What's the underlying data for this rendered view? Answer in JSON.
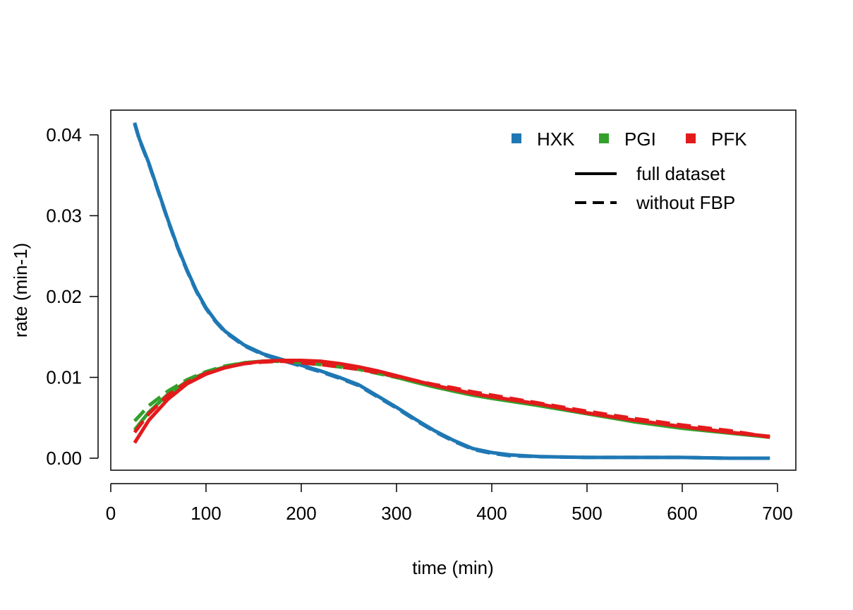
{
  "chart_data": {
    "type": "line",
    "title": "",
    "xlabel": "time (min)",
    "ylabel": "rate (min-1)",
    "xlim": [
      0,
      700
    ],
    "ylim": [
      0,
      0.042
    ],
    "xticks": [
      "0",
      "100",
      "200",
      "300",
      "400",
      "500",
      "600",
      "700"
    ],
    "yticks": [
      "0.00",
      "0.01",
      "0.02",
      "0.03",
      "0.04"
    ],
    "grid": false,
    "legend_placement": "top-right",
    "legend_enzymes": [
      {
        "name": "HXK",
        "color": "#1f78b4"
      },
      {
        "name": "PGI",
        "color": "#33a02c"
      },
      {
        "name": "PFK",
        "color": "#e31a1c"
      }
    ],
    "legend_styles": [
      {
        "name": "full dataset",
        "dash": "solid"
      },
      {
        "name": "without FBP",
        "dash": "dashed"
      }
    ],
    "series": [
      {
        "color": "#1f78b4",
        "dash": "solid",
        "x": [
          25,
          30,
          40,
          50,
          60,
          70,
          80,
          90,
          100,
          110,
          120,
          140,
          160,
          180,
          200,
          220,
          240,
          260,
          280,
          300,
          320,
          340,
          360,
          380,
          400,
          420,
          450,
          500,
          550,
          600,
          650,
          692
        ],
        "y": [
          0.0415,
          0.0395,
          0.0365,
          0.033,
          0.0295,
          0.0262,
          0.0233,
          0.0207,
          0.0186,
          0.017,
          0.0157,
          0.014,
          0.0129,
          0.0122,
          0.0115,
          0.0108,
          0.01,
          0.0091,
          0.0077,
          0.0063,
          0.0048,
          0.0034,
          0.0022,
          0.0012,
          0.0007,
          0.0004,
          0.0002,
          0.0001,
          0.0001,
          0.0001,
          0.0,
          0.0
        ]
      },
      {
        "color": "#1f78b4",
        "dash": "dashed",
        "x": [
          25,
          30,
          40,
          50,
          60,
          70,
          80,
          90,
          100,
          110,
          120,
          140,
          160,
          180,
          200,
          220,
          240,
          260,
          280,
          300,
          320,
          340,
          360,
          380,
          400,
          420,
          450,
          500,
          550,
          600,
          650,
          692
        ],
        "y": [
          0.0414,
          0.0394,
          0.0364,
          0.0329,
          0.0294,
          0.0261,
          0.0232,
          0.0206,
          0.0185,
          0.0169,
          0.0156,
          0.0139,
          0.0128,
          0.0121,
          0.0114,
          0.0107,
          0.0099,
          0.009,
          0.0076,
          0.0062,
          0.0047,
          0.0033,
          0.0021,
          0.0011,
          0.0006,
          0.0003,
          0.0002,
          0.0001,
          0.0001,
          0.0001,
          0.0,
          0.0
        ]
      },
      {
        "color": "#33a02c",
        "dash": "solid",
        "x": [
          25,
          40,
          60,
          80,
          100,
          120,
          140,
          160,
          180,
          200,
          220,
          240,
          260,
          280,
          300,
          320,
          340,
          360,
          380,
          400,
          450,
          500,
          550,
          600,
          650,
          692
        ],
        "y": [
          0.0035,
          0.0057,
          0.0079,
          0.0095,
          0.0106,
          0.0113,
          0.0118,
          0.012,
          0.0121,
          0.012,
          0.0118,
          0.0115,
          0.0111,
          0.0106,
          0.01,
          0.0094,
          0.0088,
          0.0083,
          0.0078,
          0.0074,
          0.0065,
          0.0055,
          0.0045,
          0.0037,
          0.0031,
          0.0026
        ]
      },
      {
        "color": "#33a02c",
        "dash": "dashed",
        "x": [
          25,
          40,
          60,
          80,
          100,
          120,
          140,
          160,
          180,
          200,
          220,
          240,
          260,
          280,
          300,
          320,
          340,
          360,
          380,
          400,
          450,
          500,
          550,
          600,
          650,
          692
        ],
        "y": [
          0.0046,
          0.0065,
          0.0083,
          0.0097,
          0.0107,
          0.0114,
          0.0118,
          0.012,
          0.012,
          0.0118,
          0.0116,
          0.0113,
          0.011,
          0.0105,
          0.01,
          0.0095,
          0.009,
          0.0085,
          0.008,
          0.0076,
          0.0066,
          0.0056,
          0.0047,
          0.0039,
          0.0032,
          0.0026
        ]
      },
      {
        "color": "#e31a1c",
        "dash": "solid",
        "x": [
          25,
          40,
          60,
          80,
          100,
          120,
          140,
          160,
          180,
          200,
          220,
          240,
          260,
          280,
          300,
          320,
          340,
          360,
          380,
          400,
          450,
          500,
          550,
          600,
          650,
          692
        ],
        "y": [
          0.0019,
          0.0047,
          0.0073,
          0.0092,
          0.0104,
          0.0112,
          0.0117,
          0.012,
          0.0121,
          0.0121,
          0.012,
          0.0117,
          0.0113,
          0.0108,
          0.0102,
          0.0096,
          0.009,
          0.0085,
          0.008,
          0.0076,
          0.0067,
          0.0056,
          0.0047,
          0.0039,
          0.0032,
          0.0027
        ]
      },
      {
        "color": "#e31a1c",
        "dash": "dashed",
        "x": [
          25,
          40,
          60,
          80,
          100,
          120,
          140,
          160,
          180,
          200,
          220,
          240,
          260,
          280,
          300,
          320,
          340,
          360,
          380,
          400,
          450,
          500,
          550,
          600,
          650,
          692
        ],
        "y": [
          0.0032,
          0.0055,
          0.0078,
          0.0094,
          0.0105,
          0.0112,
          0.0117,
          0.0119,
          0.012,
          0.0118,
          0.0116,
          0.0113,
          0.011,
          0.0106,
          0.0101,
          0.0096,
          0.0091,
          0.0087,
          0.0082,
          0.0078,
          0.0068,
          0.0058,
          0.0049,
          0.0041,
          0.0034,
          0.0026
        ]
      }
    ]
  }
}
